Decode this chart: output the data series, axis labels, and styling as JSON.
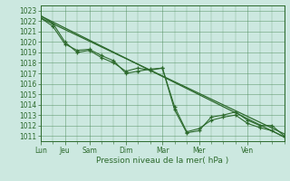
{
  "xlabel": "Pression niveau de la mer( hPa )",
  "background_color": "#cce8e0",
  "grid_color": "#4d8c5a",
  "line_color": "#2d6a2d",
  "ylim": [
    1010.5,
    1023.5
  ],
  "yticks": [
    1011,
    1012,
    1013,
    1014,
    1015,
    1016,
    1017,
    1018,
    1019,
    1020,
    1021,
    1022,
    1023
  ],
  "day_labels": [
    "Lun",
    "Jeu",
    "Sam",
    "Dim",
    "Mar",
    "Mer",
    "Ven"
  ],
  "day_positions": [
    0,
    16,
    32,
    56,
    80,
    104,
    136
  ],
  "xlim": [
    0,
    160
  ],
  "series1_x": [
    0,
    8,
    16,
    24,
    32,
    40,
    48,
    56,
    64,
    72,
    80,
    88,
    96,
    104,
    112,
    120,
    128,
    136,
    144,
    152,
    160
  ],
  "series1_y": [
    1022.5,
    1021.8,
    1020.0,
    1019.0,
    1019.2,
    1018.5,
    1018.0,
    1017.2,
    1017.5,
    1017.3,
    1017.5,
    1013.5,
    1011.3,
    1011.5,
    1012.8,
    1013.0,
    1013.3,
    1012.5,
    1012.0,
    1012.0,
    1011.0
  ],
  "series2_x": [
    0,
    8,
    16,
    24,
    32,
    40,
    48,
    56,
    64,
    72,
    80,
    88,
    96,
    104,
    112,
    120,
    128,
    136,
    144,
    152,
    160
  ],
  "series2_y": [
    1022.3,
    1021.5,
    1019.8,
    1019.2,
    1019.3,
    1018.7,
    1018.2,
    1017.0,
    1017.2,
    1017.4,
    1017.5,
    1013.8,
    1011.4,
    1011.7,
    1012.5,
    1012.8,
    1013.0,
    1012.2,
    1011.8,
    1011.5,
    1010.9
  ],
  "trend1_x": [
    0,
    160
  ],
  "trend1_y": [
    1022.5,
    1010.9
  ],
  "trend2_x": [
    0,
    160
  ],
  "trend2_y": [
    1022.3,
    1011.2
  ],
  "xlabel_fontsize": 6.5,
  "tick_fontsize": 5.5
}
